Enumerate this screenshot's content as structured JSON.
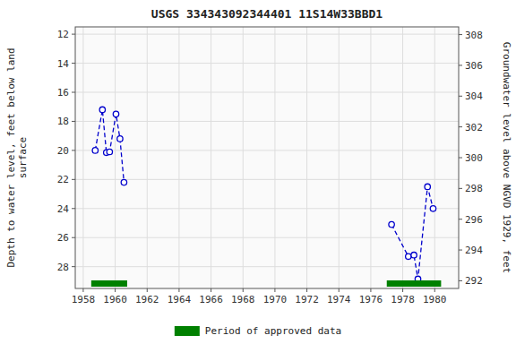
{
  "chart_data": {
    "type": "line",
    "title": "USGS 334343092344401 11S14W33BBD1",
    "y_label": "Depth to water level, feet below land\nsurface",
    "y2_label": "Groundwater level above NGVD 1929, feet",
    "xlim": [
      1957.5,
      1981.5
    ],
    "xticks": [
      1958,
      1960,
      1962,
      1964,
      1966,
      1968,
      1970,
      1972,
      1974,
      1976,
      1978,
      1980
    ],
    "ylim": [
      29.5,
      11.5
    ],
    "yticks": [
      12,
      14,
      16,
      18,
      20,
      22,
      24,
      26,
      28
    ],
    "y2lim": [
      291.5,
      308.5
    ],
    "y2ticks": [
      308,
      306,
      304,
      302,
      300,
      298,
      296,
      294,
      292
    ],
    "grid": true,
    "legend": "bottom",
    "line_style": "dashed",
    "marker": "circle",
    "series": [
      {
        "color": "#0000cc",
        "x": [
          1958.75,
          1959.2,
          1959.45,
          1959.65,
          1960.05,
          1960.3,
          1960.55
        ],
        "values": [
          20.0,
          17.2,
          20.15,
          20.1,
          17.5,
          19.2,
          22.2
        ]
      },
      {
        "color": "#0000cc",
        "x": [
          1977.3,
          1978.35,
          1978.7,
          1978.95,
          1979.55,
          1979.9
        ],
        "values": [
          25.1,
          27.3,
          27.2,
          28.85,
          22.5,
          24.0
        ]
      }
    ],
    "periods": {
      "name": "Period of approved data",
      "color": "#008000",
      "ranges": [
        [
          1958.5,
          1960.75
        ],
        [
          1977.0,
          1980.4
        ]
      ]
    }
  }
}
